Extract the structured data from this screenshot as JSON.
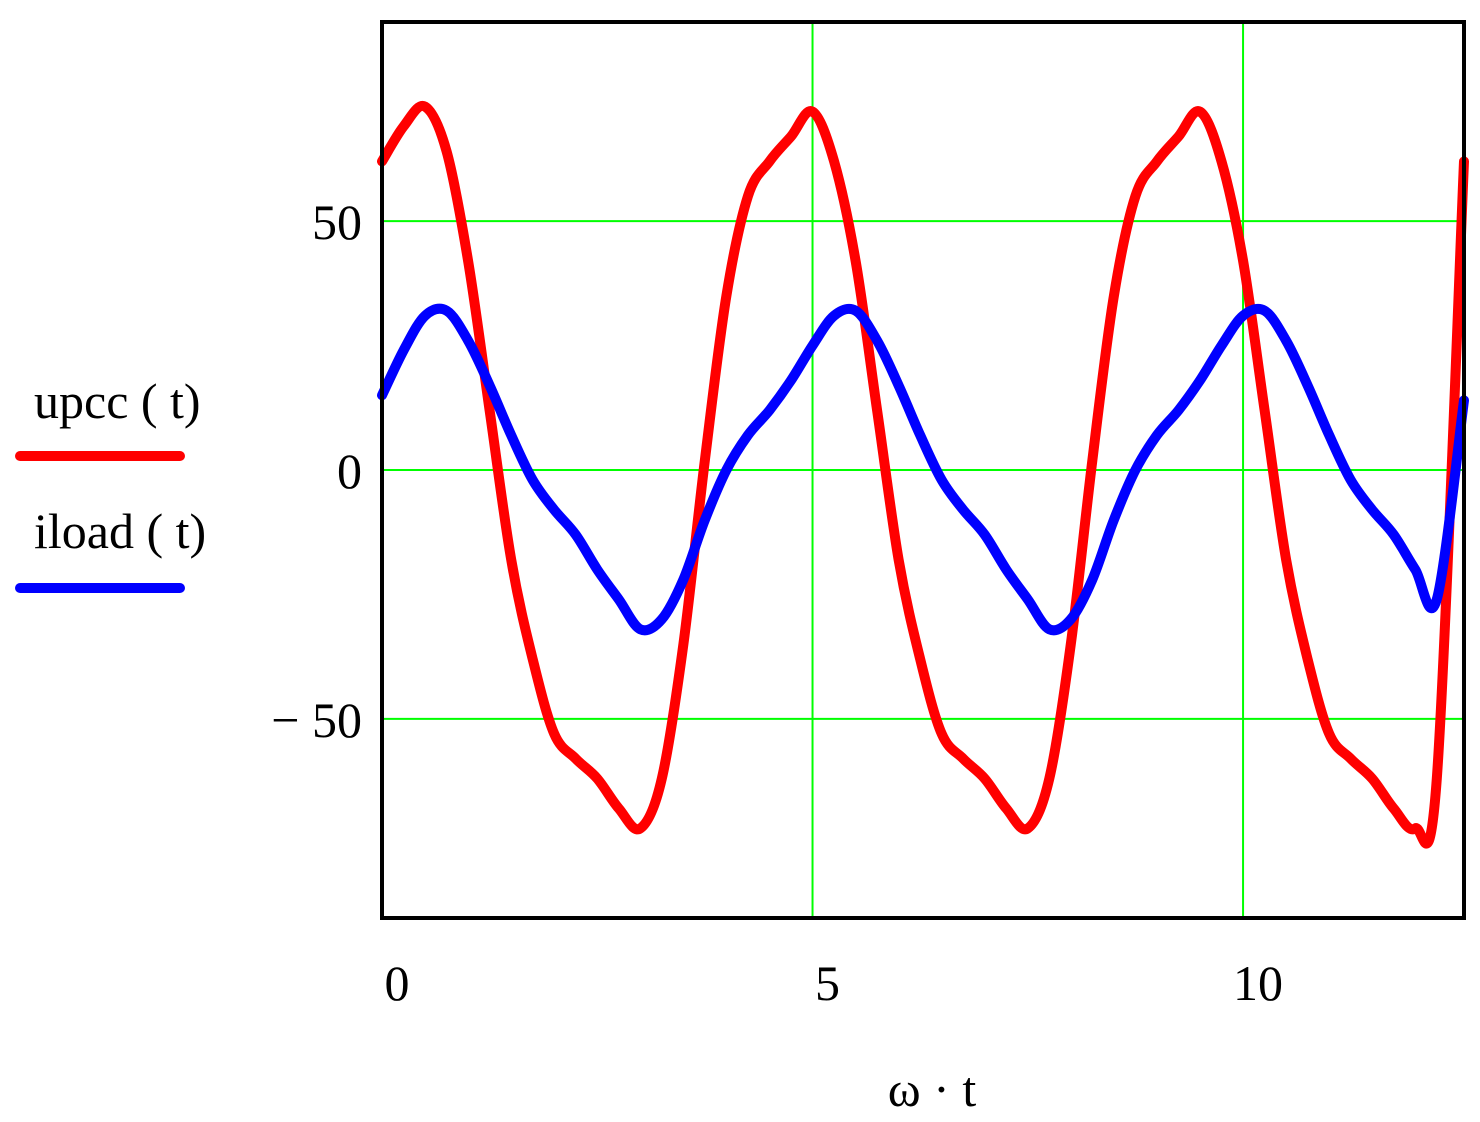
{
  "chart_data": {
    "type": "line",
    "title": "",
    "xlabel": "ω · t",
    "ylabel": "",
    "xlim": [
      0,
      12.566
    ],
    "ylim": [
      -90,
      90
    ],
    "xticks": [
      0,
      5,
      10
    ],
    "xtick_labels": [
      "0",
      "5",
      "10"
    ],
    "yticks": [
      50,
      0,
      -50
    ],
    "ytick_labels": [
      "50",
      "0",
      "−  50"
    ],
    "grid": true,
    "legend_position": "left",
    "series": [
      {
        "name": "upcc ( t)",
        "color": "#ff0000",
        "x": [
          0,
          0.25,
          0.5,
          0.75,
          1.0,
          1.25,
          1.5,
          1.75,
          2.0,
          2.25,
          2.5,
          2.75,
          3.0,
          3.25,
          3.5,
          3.75,
          4.0,
          4.25,
          4.5,
          4.75,
          5.0,
          5.25,
          5.5,
          5.75,
          6.0,
          6.25,
          6.5,
          6.75,
          7.0,
          7.25,
          7.5,
          7.75,
          8.0,
          8.25,
          8.5,
          8.75,
          9.0,
          9.25,
          9.5,
          9.75,
          10.0,
          10.25,
          10.5,
          10.75,
          11.0,
          11.25,
          11.5,
          11.75,
          12.0,
          12.25,
          12.566
        ],
        "y": [
          62,
          69,
          73,
          64,
          42,
          12,
          -18,
          -38,
          -53,
          -58,
          -62,
          -68,
          -72,
          -62,
          -35,
          2,
          35,
          55,
          62,
          67,
          72,
          62,
          42,
          12,
          -18,
          -38,
          -53,
          -58,
          -62,
          -68,
          -72,
          -62,
          -35,
          2,
          35,
          55,
          62,
          67,
          72,
          62,
          42,
          12,
          -18,
          -38,
          -53,
          -58,
          -62,
          -68,
          -72,
          -62,
          62
        ]
      },
      {
        "name": "iload ( t)",
        "color": "#0000ff",
        "x": [
          0,
          0.25,
          0.5,
          0.75,
          1.0,
          1.25,
          1.5,
          1.75,
          2.0,
          2.25,
          2.5,
          2.75,
          3.0,
          3.25,
          3.5,
          3.75,
          4.0,
          4.25,
          4.5,
          4.75,
          5.0,
          5.25,
          5.5,
          5.75,
          6.0,
          6.25,
          6.5,
          6.75,
          7.0,
          7.25,
          7.5,
          7.75,
          8.0,
          8.25,
          8.5,
          8.75,
          9.0,
          9.25,
          9.5,
          9.75,
          10.0,
          10.25,
          10.5,
          10.75,
          11.0,
          11.25,
          11.5,
          11.75,
          12.0,
          12.25,
          12.566
        ],
        "y": [
          15,
          24,
          31,
          32,
          26,
          17,
          7,
          -2,
          -8,
          -13,
          -20,
          -26,
          -32,
          -30,
          -22,
          -10,
          0,
          7,
          12,
          18,
          25,
          31,
          32,
          26,
          17,
          7,
          -2,
          -8,
          -13,
          -20,
          -26,
          -32,
          -30,
          -22,
          -10,
          0,
          7,
          12,
          18,
          25,
          31,
          32,
          26,
          17,
          7,
          -2,
          -8,
          -13,
          -20,
          -26,
          14
        ]
      }
    ]
  }
}
